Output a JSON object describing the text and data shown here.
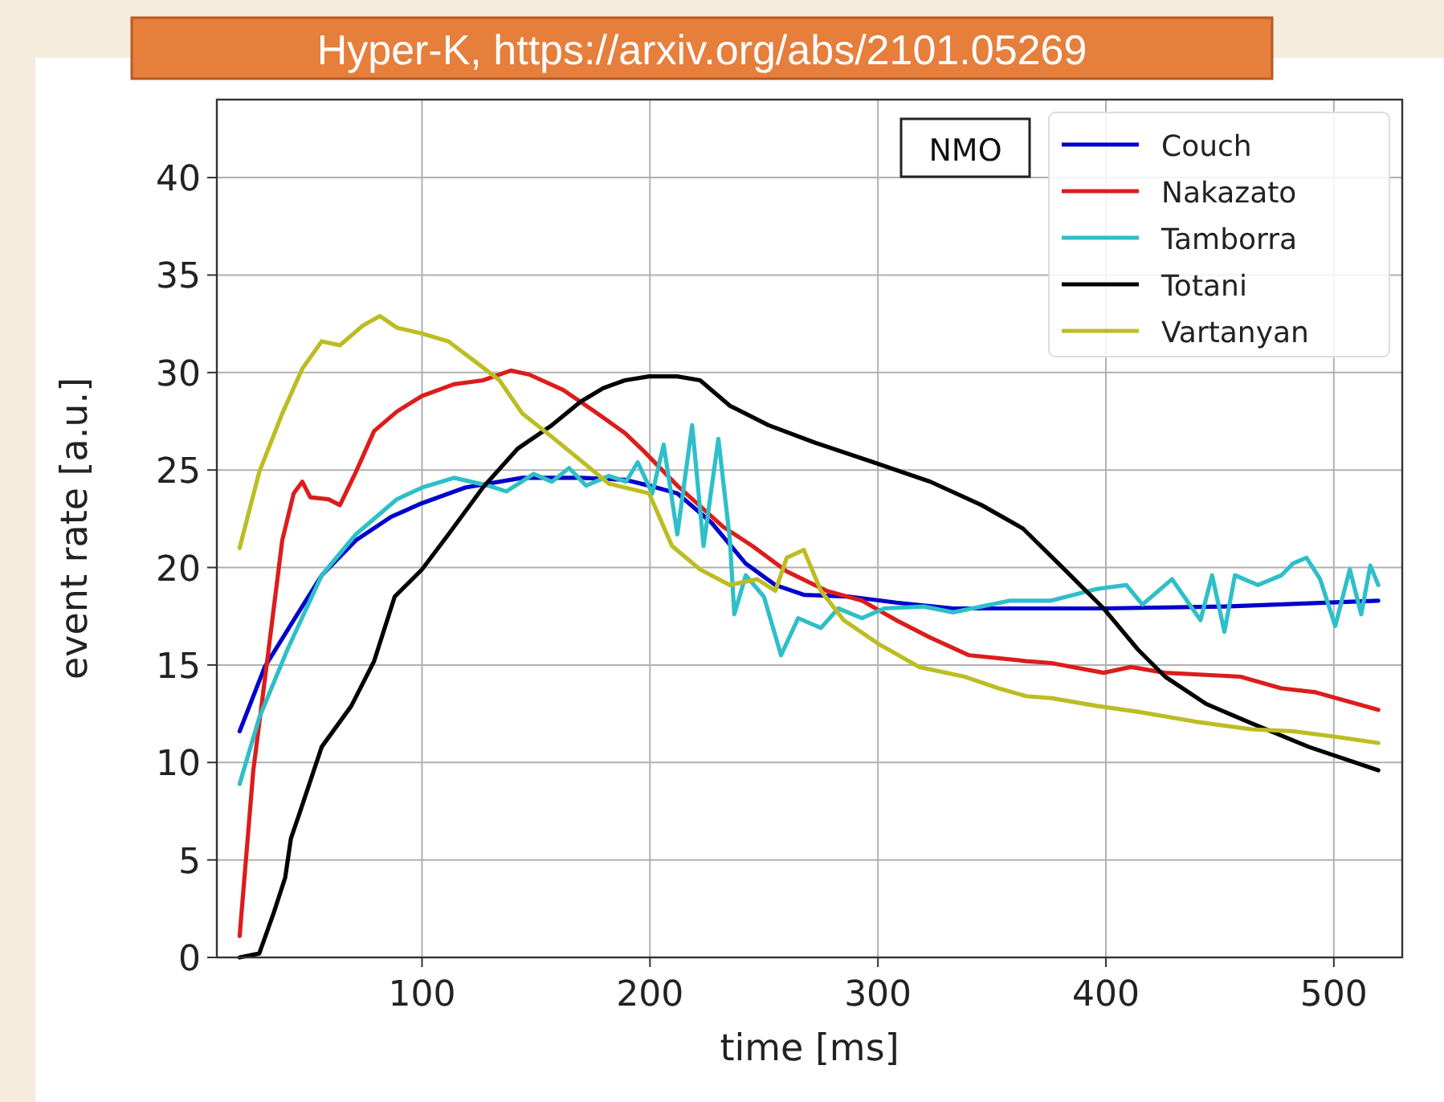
{
  "chart_data": {
    "type": "line",
    "xlabel": "time [ms]",
    "ylabel": "event rate [a.u.]",
    "annotations": [
      "Hyper-K, https://arxiv.org/abs/2101.05269",
      "NMO"
    ],
    "xlim": [
      10,
      530
    ],
    "xticks": [
      100,
      200,
      300,
      400,
      500
    ],
    "ylim": [
      0,
      44
    ],
    "yticks": [
      0,
      5,
      10,
      15,
      20,
      25,
      30,
      35,
      40
    ],
    "grid": true,
    "legend": "top right",
    "series": [
      {
        "name": "Couch",
        "color": "#0000cc",
        "x": [
          20,
          31,
          43.7,
          56,
          71,
          86.5,
          100,
          119,
          144,
          169.5,
          189,
          199.6,
          212,
          227,
          242,
          255,
          267.5,
          288,
          308,
          333,
          365,
          399,
          452,
          519.5
        ],
        "values": [
          11.6,
          14.9,
          17.3,
          19.6,
          21.4,
          22.6,
          23.3,
          24.1,
          24.6,
          24.6,
          24.5,
          24.2,
          23.8,
          22.3,
          20.2,
          19.1,
          18.6,
          18.5,
          18.2,
          17.9,
          17.9,
          17.9,
          18.0,
          18.3
        ]
      },
      {
        "name": "Nakazato",
        "color": "#dd1c1c",
        "x": [
          20,
          26,
          32.4,
          38.7,
          43.7,
          47.5,
          51,
          59,
          64,
          71,
          79,
          89,
          100,
          114,
          126.7,
          139,
          147,
          162,
          177,
          189,
          197,
          212,
          232,
          245,
          260,
          277.6,
          293,
          308,
          323,
          340,
          365,
          376,
          399,
          411,
          426,
          459,
          477,
          492,
          519.5
        ],
        "values": [
          1.1,
          9.6,
          15.5,
          21.4,
          23.8,
          24.4,
          23.6,
          23.5,
          23.2,
          24.9,
          27,
          28,
          28.8,
          29.4,
          29.6,
          30.1,
          29.9,
          29.1,
          27.9,
          26.9,
          26,
          24.2,
          22.1,
          21.1,
          19.8,
          18.8,
          18.3,
          17.3,
          16.4,
          15.5,
          15.2,
          15.1,
          14.6,
          14.9,
          14.6,
          14.4,
          13.8,
          13.6,
          12.7
        ]
      },
      {
        "name": "Tamborra",
        "color": "#2ebfc9",
        "x": [
          20,
          28.6,
          41,
          56,
          71,
          89,
          100,
          114,
          129,
          137,
          149,
          157,
          164.5,
          172,
          182,
          189.5,
          194.6,
          201,
          206,
          212,
          218.5,
          223.5,
          230,
          235,
          237,
          242,
          250,
          257.5,
          265,
          275,
          282.6,
          293,
          302.7,
          320,
          333,
          358,
          376,
          396,
          409,
          416,
          429,
          441.5,
          446.6,
          452,
          456.6,
          466.7,
          477,
          482,
          488,
          494,
          500.6,
          507,
          512,
          516,
          519.5
        ],
        "values": [
          8.9,
          12.3,
          15.8,
          19.6,
          21.7,
          23.5,
          24.1,
          24.6,
          24.2,
          23.9,
          24.8,
          24.4,
          25.1,
          24.2,
          24.7,
          24.4,
          25.4,
          23.8,
          26.3,
          21.7,
          27.3,
          21.1,
          26.6,
          21.5,
          17.6,
          19.6,
          18.5,
          15.5,
          17.4,
          16.9,
          17.9,
          17.4,
          17.9,
          18.0,
          17.7,
          18.3,
          18.3,
          18.9,
          19.1,
          18.1,
          19.4,
          17.3,
          19.6,
          16.7,
          19.6,
          19.1,
          19.6,
          20.2,
          20.5,
          19.4,
          17.0,
          19.9,
          17.6,
          20.1,
          19.1
        ]
      },
      {
        "name": "Totani",
        "color": "#000000",
        "x": [
          20,
          28.6,
          35,
          40,
          42.5,
          46,
          56,
          69,
          79,
          88,
          100,
          111.6,
          126.7,
          142,
          157,
          169.5,
          179.5,
          189,
          199.6,
          212,
          222,
          235,
          252,
          272.5,
          298,
          323,
          345.5,
          363.6,
          381,
          399,
          414,
          426,
          444,
          464,
          489,
          519.5
        ],
        "values": [
          0,
          0.2,
          2.3,
          4.1,
          6.1,
          7.3,
          10.8,
          12.9,
          15.2,
          18.5,
          19.9,
          21.7,
          24.1,
          26.1,
          27.3,
          28.5,
          29.2,
          29.6,
          29.8,
          29.8,
          29.6,
          28.3,
          27.3,
          26.4,
          25.4,
          24.4,
          23.2,
          22.0,
          20.0,
          17.9,
          15.8,
          14.4,
          13.0,
          12.0,
          10.8,
          9.6
        ]
      },
      {
        "name": "Vartanyan",
        "color": "#bcbd22",
        "x": [
          20,
          28.6,
          38.7,
          47.5,
          56,
          64,
          74,
          81.5,
          89,
          100,
          111.6,
          124,
          134,
          144,
          157,
          169.5,
          182,
          199.6,
          209.7,
          222,
          235,
          247,
          255,
          260,
          267.5,
          275,
          285,
          300,
          318,
          338,
          353,
          365,
          376,
          396,
          414,
          439,
          464,
          482,
          502,
          519.5
        ],
        "values": [
          21.0,
          24.9,
          27.9,
          30.2,
          31.6,
          31.4,
          32.4,
          32.9,
          32.3,
          32,
          31.6,
          30.5,
          29.6,
          27.9,
          26.7,
          25.5,
          24.3,
          23.8,
          21.1,
          19.9,
          19.1,
          19.4,
          18.8,
          20.5,
          20.9,
          18.8,
          17.3,
          16.1,
          14.9,
          14.4,
          13.8,
          13.4,
          13.3,
          12.9,
          12.6,
          12.1,
          11.7,
          11.6,
          11.3,
          11.0
        ]
      }
    ]
  }
}
